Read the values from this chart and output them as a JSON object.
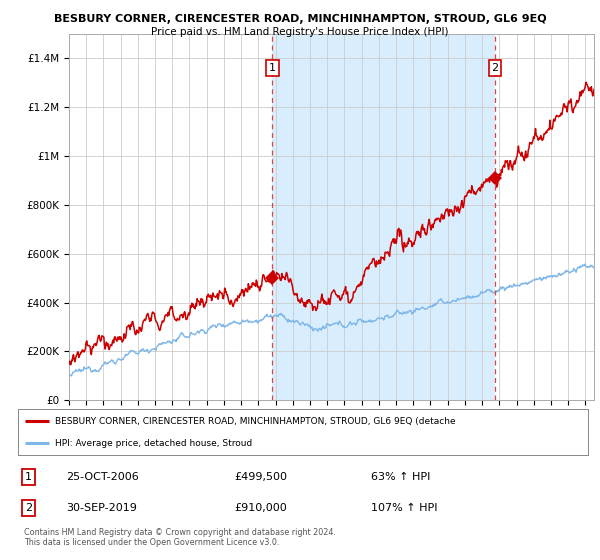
{
  "title": "BESBURY CORNER, CIRENCESTER ROAD, MINCHINHAMPTON, STROUD, GL6 9EQ",
  "subtitle": "Price paid vs. HM Land Registry's House Price Index (HPI)",
  "ylabel_ticks": [
    "£0",
    "£200K",
    "£400K",
    "£600K",
    "£800K",
    "£1M",
    "£1.2M",
    "£1.4M"
  ],
  "ytick_values": [
    0,
    200000,
    400000,
    600000,
    800000,
    1000000,
    1200000,
    1400000
  ],
  "ylim": [
    0,
    1500000
  ],
  "xlim_start": 1995.0,
  "xlim_end": 2025.5,
  "sale1_x": 2006.82,
  "sale1_y": 499500,
  "sale1_label": "1",
  "sale1_date": "25-OCT-2006",
  "sale1_price": "£499,500",
  "sale1_pct": "63% ↑ HPI",
  "sale2_x": 2019.75,
  "sale2_y": 910000,
  "sale2_label": "2",
  "sale2_date": "30-SEP-2019",
  "sale2_price": "£910,000",
  "sale2_pct": "107% ↑ HPI",
  "red_line_color": "#CC0000",
  "blue_line_color": "#7EB6E8",
  "shade_color": "#D8EEFF",
  "background_color": "#FFFFFF",
  "grid_color": "#CCCCCC",
  "legend_label_red": "BESBURY CORNER, CIRENCESTER ROAD, MINCHINHAMPTON, STROUD, GL6 9EQ (detache",
  "legend_label_blue": "HPI: Average price, detached house, Stroud",
  "footnote": "Contains HM Land Registry data © Crown copyright and database right 2024.\nThis data is licensed under the Open Government Licence v3.0."
}
